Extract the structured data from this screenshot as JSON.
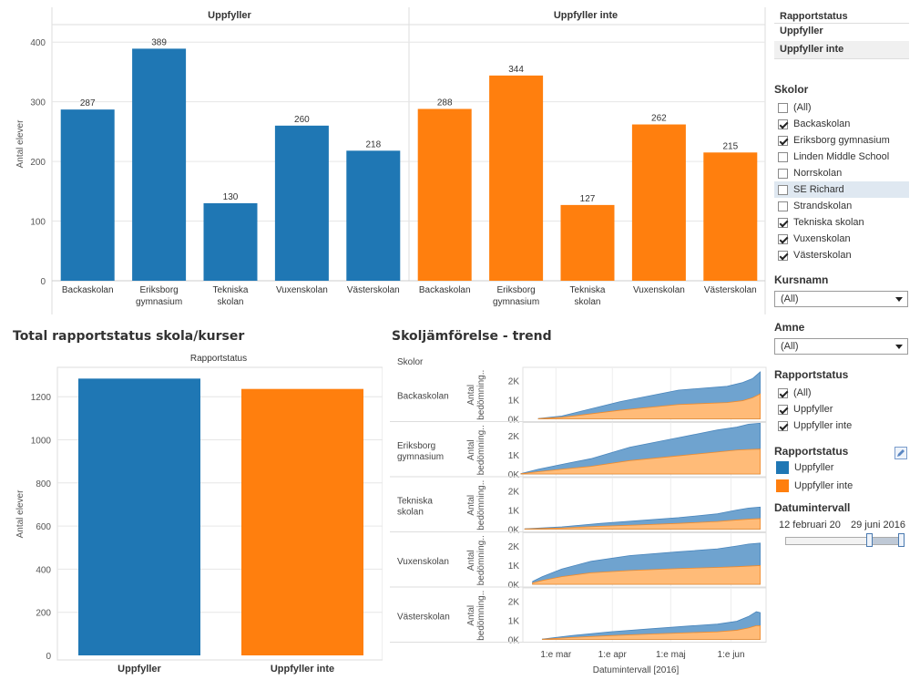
{
  "colors": {
    "uppfyller": "#1f77b4",
    "uppfyller_inte": "#ff7f0e",
    "grid": "#e6e6e6",
    "axis": "#cccccc",
    "band_blue": "#6fa3cf",
    "band_orange": "#ffbb78"
  },
  "top_chart": {
    "ylabel": "Antal elever",
    "yticks": [
      "0",
      "100",
      "200",
      "300",
      "400"
    ],
    "panels": [
      {
        "header": "Uppfyller",
        "color": "uppfyller",
        "bars": [
          {
            "cat_lines": [
              "Backaskolan"
            ],
            "value": 287,
            "label": "287"
          },
          {
            "cat_lines": [
              "Eriksborg",
              "gymnasium"
            ],
            "value": 389,
            "label": "389"
          },
          {
            "cat_lines": [
              "Tekniska",
              "skolan"
            ],
            "value": 130,
            "label": "130"
          },
          {
            "cat_lines": [
              "Vuxenskolan"
            ],
            "value": 260,
            "label": "260"
          },
          {
            "cat_lines": [
              "Västerskolan"
            ],
            "value": 218,
            "label": "218"
          }
        ]
      },
      {
        "header": "Uppfyller inte",
        "color": "uppfyller_inte",
        "bars": [
          {
            "cat_lines": [
              "Backaskolan"
            ],
            "value": 288,
            "label": "288"
          },
          {
            "cat_lines": [
              "Eriksborg",
              "gymnasium"
            ],
            "value": 344,
            "label": "344"
          },
          {
            "cat_lines": [
              "Tekniska",
              "skolan"
            ],
            "value": 127,
            "label": "127"
          },
          {
            "cat_lines": [
              "Vuxenskolan"
            ],
            "value": 262,
            "label": "262"
          },
          {
            "cat_lines": [
              "Västerskolan"
            ],
            "value": 215,
            "label": "215"
          }
        ]
      }
    ]
  },
  "total_chart": {
    "title": "Total rapportstatus skola/kurser",
    "header": "Rapportstatus",
    "ylabel": "Antal elever",
    "yticks": [
      "0",
      "200",
      "400",
      "600",
      "800",
      "1000",
      "1200"
    ],
    "bars": [
      {
        "cat": "Uppfyller",
        "value": 1284,
        "color": "uppfyller"
      },
      {
        "cat": "Uppfyller inte",
        "value": 1236,
        "color": "uppfyller_inte"
      }
    ]
  },
  "trend_chart": {
    "title": "Skoljämförelse - trend",
    "row_header": "Skolor",
    "ylabel_lines": [
      "Antal",
      "bedömning.."
    ],
    "yticks": [
      "0K",
      "1K",
      "2K"
    ],
    "xticks": [
      "1:e mar",
      "1:e apr",
      "1:e maj",
      "1:e jun"
    ],
    "xtick_days": [
      17,
      46,
      76,
      107
    ],
    "xlabel": "Datumintervall [2016]",
    "day_range": [
      0,
      125
    ],
    "rows": [
      {
        "name_lines": [
          "Backaskolan"
        ],
        "start": 8,
        "total": [
          [
            8,
            0.02
          ],
          [
            20,
            0.15
          ],
          [
            30,
            0.4
          ],
          [
            50,
            0.9
          ],
          [
            80,
            1.5
          ],
          [
            105,
            1.7
          ],
          [
            113,
            1.9
          ],
          [
            118,
            2.1
          ],
          [
            122,
            2.45
          ]
        ],
        "orange": [
          [
            8,
            0.01
          ],
          [
            20,
            0.08
          ],
          [
            30,
            0.2
          ],
          [
            50,
            0.45
          ],
          [
            80,
            0.75
          ],
          [
            105,
            0.85
          ],
          [
            113,
            0.95
          ],
          [
            118,
            1.1
          ],
          [
            122,
            1.3
          ]
        ]
      },
      {
        "name_lines": [
          "Eriksborg",
          "gymnasium"
        ],
        "start": -1,
        "total": [
          [
            -1,
            0.02
          ],
          [
            8,
            0.25
          ],
          [
            20,
            0.5
          ],
          [
            35,
            0.8
          ],
          [
            55,
            1.4
          ],
          [
            80,
            1.9
          ],
          [
            100,
            2.3
          ],
          [
            110,
            2.45
          ],
          [
            116,
            2.6
          ],
          [
            122,
            2.65
          ]
        ],
        "orange": [
          [
            -1,
            0.01
          ],
          [
            8,
            0.12
          ],
          [
            20,
            0.25
          ],
          [
            35,
            0.4
          ],
          [
            55,
            0.7
          ],
          [
            80,
            0.95
          ],
          [
            100,
            1.15
          ],
          [
            110,
            1.25
          ],
          [
            116,
            1.28
          ],
          [
            122,
            1.3
          ]
        ]
      },
      {
        "name_lines": [
          "Tekniska",
          "skolan"
        ],
        "start": 1,
        "total": [
          [
            1,
            0.02
          ],
          [
            20,
            0.12
          ],
          [
            40,
            0.3
          ],
          [
            60,
            0.45
          ],
          [
            80,
            0.6
          ],
          [
            100,
            0.8
          ],
          [
            110,
            1.0
          ],
          [
            116,
            1.1
          ],
          [
            122,
            1.15
          ]
        ],
        "orange": [
          [
            1,
            0.01
          ],
          [
            20,
            0.06
          ],
          [
            40,
            0.15
          ],
          [
            60,
            0.22
          ],
          [
            80,
            0.3
          ],
          [
            100,
            0.4
          ],
          [
            110,
            0.48
          ],
          [
            116,
            0.52
          ],
          [
            122,
            0.55
          ]
        ]
      },
      {
        "name_lines": [
          "Vuxenskolan"
        ],
        "start": 5,
        "total": [
          [
            5,
            0.15
          ],
          [
            10,
            0.4
          ],
          [
            20,
            0.8
          ],
          [
            35,
            1.2
          ],
          [
            55,
            1.5
          ],
          [
            80,
            1.7
          ],
          [
            100,
            1.85
          ],
          [
            110,
            2.0
          ],
          [
            116,
            2.1
          ],
          [
            122,
            2.15
          ]
        ],
        "orange": [
          [
            5,
            0.07
          ],
          [
            10,
            0.2
          ],
          [
            20,
            0.4
          ],
          [
            35,
            0.6
          ],
          [
            55,
            0.72
          ],
          [
            80,
            0.82
          ],
          [
            100,
            0.88
          ],
          [
            110,
            0.92
          ],
          [
            116,
            0.95
          ],
          [
            122,
            0.98
          ]
        ]
      },
      {
        "name_lines": [
          "Västerskolan"
        ],
        "start": 10,
        "total": [
          [
            10,
            0.02
          ],
          [
            25,
            0.2
          ],
          [
            45,
            0.4
          ],
          [
            65,
            0.55
          ],
          [
            85,
            0.7
          ],
          [
            100,
            0.8
          ],
          [
            110,
            0.95
          ],
          [
            116,
            1.2
          ],
          [
            120,
            1.45
          ],
          [
            122,
            1.4
          ]
        ],
        "orange": [
          [
            10,
            0.01
          ],
          [
            25,
            0.1
          ],
          [
            45,
            0.2
          ],
          [
            65,
            0.28
          ],
          [
            85,
            0.35
          ],
          [
            100,
            0.4
          ],
          [
            110,
            0.48
          ],
          [
            116,
            0.6
          ],
          [
            120,
            0.72
          ],
          [
            122,
            0.72
          ]
        ]
      }
    ]
  },
  "sidebar": {
    "rapportstatus_top": {
      "header": "Rapportstatus",
      "items": [
        "Uppfyller",
        "Uppfyller inte"
      ]
    },
    "skolor": {
      "header": "Skolor",
      "items": [
        {
          "label": "(All)",
          "checked": false
        },
        {
          "label": "Backaskolan",
          "checked": true
        },
        {
          "label": "Eriksborg gymnasium",
          "checked": true
        },
        {
          "label": "Linden Middle School",
          "checked": false
        },
        {
          "label": "Norrskolan",
          "checked": false
        },
        {
          "label": "SE Richard",
          "checked": false
        },
        {
          "label": "Strandskolan",
          "checked": false
        },
        {
          "label": "Tekniska skolan",
          "checked": true
        },
        {
          "label": "Vuxenskolan",
          "checked": true
        },
        {
          "label": "Västerskolan",
          "checked": true
        }
      ]
    },
    "kursnamn": {
      "header": "Kursnamn",
      "value": "(All)"
    },
    "amne": {
      "header": "Amne",
      "value": "(All)"
    },
    "rapportstatus_filter": {
      "header": "Rapportstatus",
      "items": [
        {
          "label": "(All)",
          "checked": true
        },
        {
          "label": "Uppfyller",
          "checked": true
        },
        {
          "label": "Uppfyller inte",
          "checked": true
        }
      ]
    },
    "legend": {
      "header": "Rapportstatus",
      "items": [
        {
          "label": "Uppfyller",
          "color": "uppfyller"
        },
        {
          "label": "Uppfyller inte",
          "color": "uppfyller_inte"
        }
      ]
    },
    "datum": {
      "header": "Datumintervall",
      "start": "12 februari 20",
      "end": "29 juni 2016",
      "range_start_pct": 70,
      "range_end_pct": 100
    }
  }
}
